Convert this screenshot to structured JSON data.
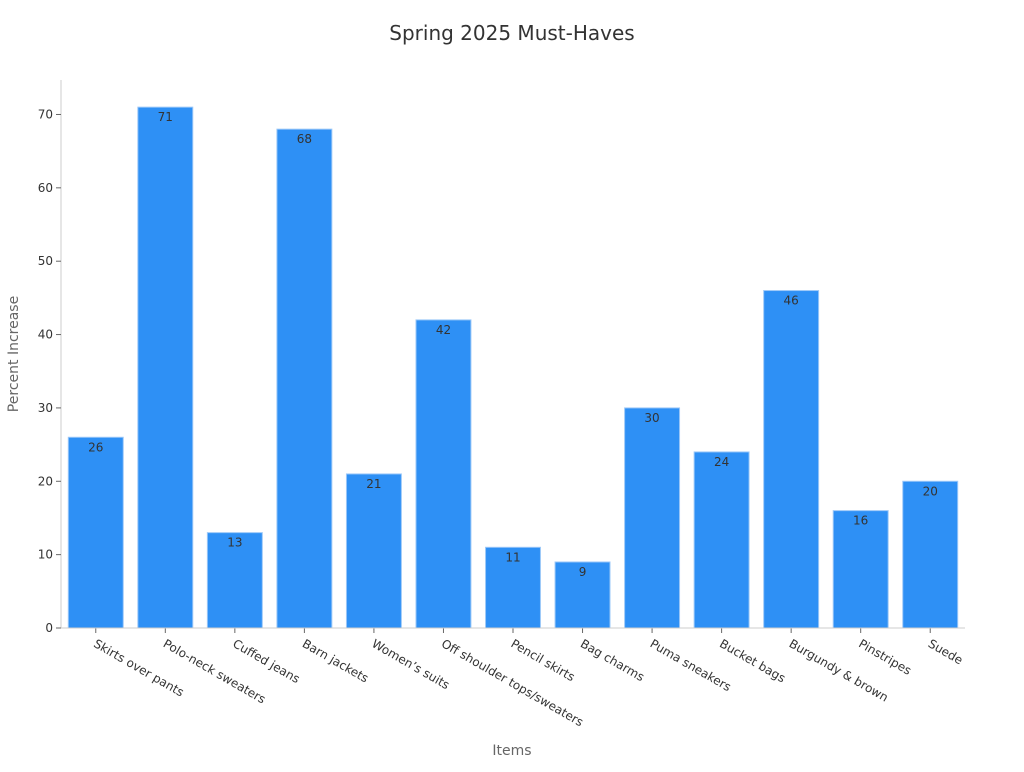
{
  "chart_data": {
    "type": "bar",
    "title": "Spring 2025 Must-Haves",
    "xlabel": "Items",
    "ylabel": "Percent Increase",
    "categories": [
      "Skirts over pants",
      "Polo-neck sweaters",
      "Cuffed jeans",
      "Barn jackets",
      "Women’s suits",
      "Off shoulder tops/sweaters",
      "Pencil skirts",
      "Bag charms",
      "Puma sneakers",
      "Bucket bags",
      "Burgundy & brown",
      "Pinstripes",
      "Suede"
    ],
    "values": [
      26,
      71,
      13,
      68,
      21,
      42,
      11,
      9,
      30,
      24,
      46,
      16,
      20
    ],
    "yticks": [
      0,
      10,
      20,
      30,
      40,
      50,
      60,
      70
    ],
    "ylim": [
      0,
      74.7
    ],
    "grid": false,
    "data_labels": true,
    "colors": {
      "bar": "#2e90f5",
      "bar_edge": "#9cc8f8",
      "label": "#333333",
      "axis": "#cccccc"
    }
  }
}
